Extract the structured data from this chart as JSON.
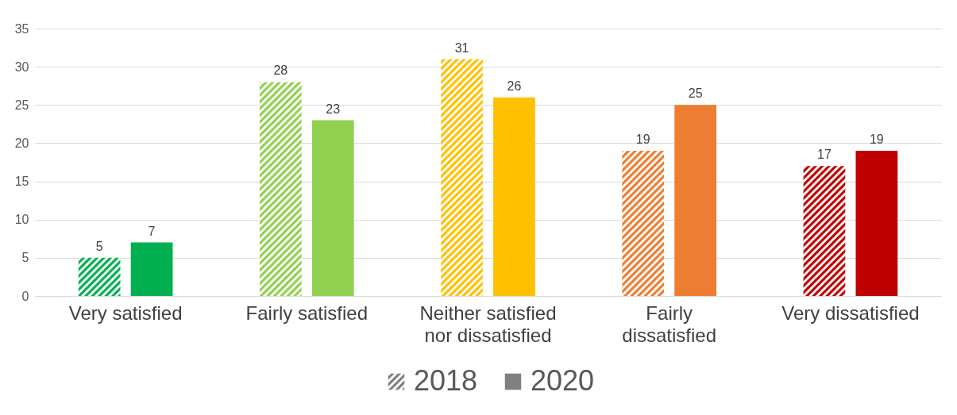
{
  "chart_data": {
    "type": "bar",
    "categories": [
      "Very satisfied",
      "Fairly satisfied",
      "Neither satisfied nor dissatisfied",
      "Fairly dissatisfied",
      "Very dissatisfied"
    ],
    "series": [
      {
        "name": "2018",
        "color": "#808080",
        "colors": [
          "#00b050",
          "#92d050",
          "#ffc000",
          "#ed7d31",
          "#c00000"
        ],
        "values": [
          5,
          28,
          31,
          19,
          17
        ]
      },
      {
        "name": "2020",
        "color": "#808080",
        "colors": [
          "#00b050",
          "#92d050",
          "#ffc000",
          "#ed7d31",
          "#c00000"
        ],
        "values": [
          7,
          23,
          26,
          25,
          19
        ]
      }
    ],
    "ylim": [
      0,
      35
    ],
    "yticks": [
      0,
      5,
      10,
      15,
      20,
      25,
      30,
      35
    ],
    "grid": "y",
    "legend": "bottom",
    "data_labels": true
  }
}
